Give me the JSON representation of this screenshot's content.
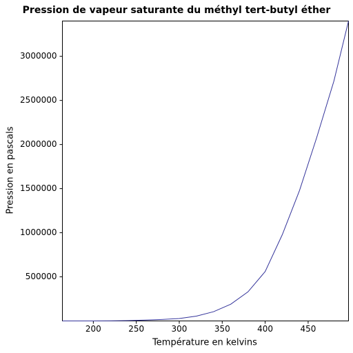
{
  "chart_data": {
    "type": "line",
    "title": "Pression de vapeur saturante du méthyl tert-butyl éther",
    "x_label": "Température en kelvins",
    "y_label": "Pression en pascals",
    "x": [
      164,
      180,
      200,
      220,
      240,
      260,
      280,
      300,
      320,
      340,
      360,
      380,
      400,
      420,
      440,
      460,
      480,
      497
    ],
    "series": [
      {
        "color": "#33339a",
        "values": [
          5,
          40,
          300,
          1300,
          4000,
          10000,
          17000,
          27000,
          55000,
          105000,
          190000,
          330000,
          560000,
          980000,
          1480000,
          2080000,
          2720000,
          3400000
        ]
      }
    ],
    "xlim": [
      164,
      497
    ],
    "ylim": [
      0,
      3400000
    ],
    "xticks": [
      200,
      250,
      300,
      350,
      400,
      450
    ],
    "yticks": [
      500000,
      1000000,
      1500000,
      2000000,
      2500000,
      3000000
    ]
  }
}
